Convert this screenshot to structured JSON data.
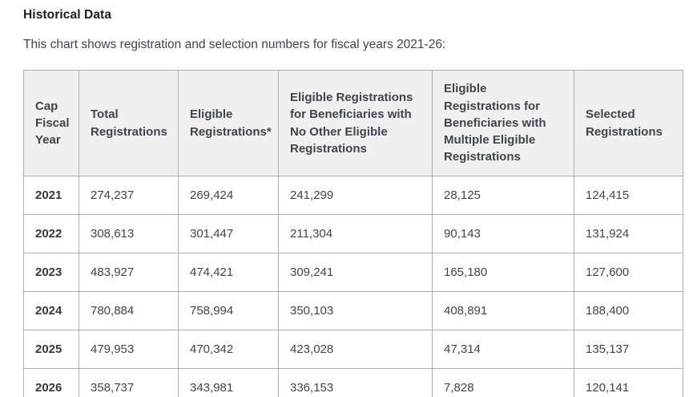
{
  "page": {
    "title": "Historical Data",
    "subtitle": "This chart shows registration and selection numbers for fiscal years 2021-26:"
  },
  "colors": {
    "heading_text": "#1b1b1b",
    "body_text": "#3d4551",
    "table_border": "#aeaeae",
    "header_row_bg": "#f0f0f0",
    "row_bg": "#ffffff"
  },
  "chart_data": {
    "type": "table",
    "title": "Historical Data",
    "caption": "This chart shows registration and selection numbers for fiscal years 2021-26:",
    "columns": [
      "Cap Fiscal Year",
      "Total Registrations",
      "Eligible Registrations*",
      "Eligible Registrations for Beneficiaries with No Other Eligible Registrations",
      "Eligible Registrations for Beneficiaries with Multiple Eligible Registrations",
      "Selected Registrations"
    ],
    "rows": [
      [
        "2021",
        "274,237",
        "269,424",
        "241,299",
        "28,125",
        "124,415"
      ],
      [
        "2022",
        "308,613",
        "301,447",
        "211,304",
        "90,143",
        "131,924"
      ],
      [
        "2023",
        "483,927",
        "474,421",
        "309,241",
        "165,180",
        "127,600"
      ],
      [
        "2024",
        "780,884",
        "758,994",
        "350,103",
        "408,891",
        "188,400"
      ],
      [
        "2025",
        "479,953",
        "470,342",
        "423,028",
        "47,314",
        "135,137"
      ],
      [
        "2026",
        "358,737",
        "343,981",
        "336,153",
        "7,828",
        "120,141"
      ]
    ],
    "rows_numeric": [
      {
        "cap_fiscal_year": 2021,
        "total_registrations": 274237,
        "eligible_registrations": 269424,
        "eligible_no_other": 241299,
        "eligible_multiple": 28125,
        "selected_registrations": 124415
      },
      {
        "cap_fiscal_year": 2022,
        "total_registrations": 308613,
        "eligible_registrations": 301447,
        "eligible_no_other": 211304,
        "eligible_multiple": 90143,
        "selected_registrations": 131924
      },
      {
        "cap_fiscal_year": 2023,
        "total_registrations": 483927,
        "eligible_registrations": 474421,
        "eligible_no_other": 309241,
        "eligible_multiple": 165180,
        "selected_registrations": 127600
      },
      {
        "cap_fiscal_year": 2024,
        "total_registrations": 780884,
        "eligible_registrations": 758994,
        "eligible_no_other": 350103,
        "eligible_multiple": 408891,
        "selected_registrations": 188400
      },
      {
        "cap_fiscal_year": 2025,
        "total_registrations": 479953,
        "eligible_registrations": 470342,
        "eligible_no_other": 423028,
        "eligible_multiple": 47314,
        "selected_registrations": 135137
      },
      {
        "cap_fiscal_year": 2026,
        "total_registrations": 358737,
        "eligible_registrations": 343981,
        "eligible_no_other": 336153,
        "eligible_multiple": 7828,
        "selected_registrations": 120141
      }
    ]
  }
}
